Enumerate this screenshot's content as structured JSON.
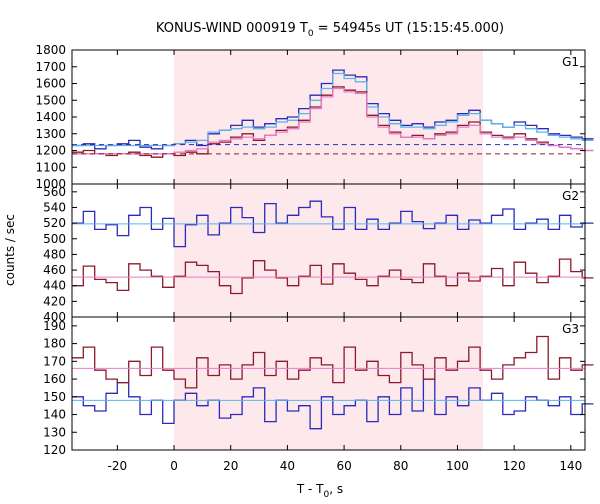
{
  "figure": {
    "title_main": "KONUS-WIND 000919 T",
    "title_sub": "0",
    "title_rest": " = 54945s UT (15:15:45.000)",
    "ylabel": "counts / sec",
    "xlabel_main": "T - T",
    "xlabel_sub": "0",
    "xlabel_rest": ", s"
  },
  "colors": {
    "red_series": "#8b1a2b",
    "blue_series": "#2b2bbb",
    "cyan_fit": "#5ab4e8",
    "pink_fit": "#e87cc8",
    "shade": "#fde8ec"
  },
  "chart_data": [
    {
      "type": "line",
      "panel": "G1",
      "xlim": [
        -36,
        145
      ],
      "ylim": [
        1000,
        1800
      ],
      "yticks": [
        1000,
        1100,
        1200,
        1300,
        1400,
        1500,
        1600,
        1700,
        1800
      ],
      "xticks": [
        -20,
        0,
        20,
        40,
        60,
        80,
        100,
        120,
        140
      ],
      "shaded_interval": [
        0,
        109
      ],
      "step": 4,
      "x_start": -36,
      "series": [
        {
          "color_key": "blue_series",
          "style": "step",
          "values": [
            1230,
            1240,
            1210,
            1230,
            1240,
            1260,
            1220,
            1210,
            1230,
            1240,
            1260,
            1230,
            1300,
            1320,
            1350,
            1380,
            1340,
            1360,
            1390,
            1400,
            1450,
            1530,
            1600,
            1680,
            1650,
            1640,
            1480,
            1420,
            1380,
            1350,
            1360,
            1340,
            1370,
            1380,
            1420,
            1440,
            1380,
            1360,
            1340,
            1370,
            1350,
            1330,
            1300,
            1290,
            1280,
            1270
          ]
        },
        {
          "color_key": "cyan_fit",
          "style": "step",
          "values": [
            1230,
            1230,
            1230,
            1230,
            1230,
            1230,
            1230,
            1230,
            1230,
            1240,
            1250,
            1260,
            1310,
            1320,
            1330,
            1340,
            1330,
            1340,
            1370,
            1380,
            1420,
            1500,
            1570,
            1660,
            1630,
            1610,
            1460,
            1400,
            1360,
            1340,
            1340,
            1330,
            1350,
            1370,
            1410,
            1420,
            1380,
            1360,
            1340,
            1350,
            1330,
            1310,
            1290,
            1280,
            1270,
            1260
          ]
        },
        {
          "color_key": "red_series",
          "style": "step",
          "values": [
            1190,
            1200,
            1180,
            1170,
            1180,
            1190,
            1170,
            1160,
            1180,
            1170,
            1190,
            1180,
            1240,
            1250,
            1280,
            1300,
            1260,
            1290,
            1320,
            1340,
            1380,
            1460,
            1530,
            1580,
            1560,
            1550,
            1410,
            1350,
            1310,
            1280,
            1290,
            1270,
            1300,
            1310,
            1350,
            1370,
            1310,
            1290,
            1280,
            1300,
            1270,
            1250,
            1230,
            1220,
            1210,
            1200
          ]
        },
        {
          "color_key": "pink_fit",
          "style": "step",
          "values": [
            1180,
            1180,
            1180,
            1180,
            1180,
            1180,
            1180,
            1180,
            1180,
            1190,
            1200,
            1210,
            1250,
            1260,
            1270,
            1280,
            1270,
            1290,
            1310,
            1330,
            1370,
            1450,
            1520,
            1570,
            1550,
            1540,
            1400,
            1340,
            1300,
            1280,
            1280,
            1270,
            1290,
            1300,
            1340,
            1350,
            1300,
            1280,
            1270,
            1280,
            1260,
            1240,
            1230,
            1220,
            1210,
            1200
          ]
        },
        {
          "color_key": "blue_series",
          "style": "dashed-level",
          "level": 1235
        },
        {
          "color_key": "red_series",
          "style": "dashed-level",
          "level": 1180
        }
      ]
    },
    {
      "type": "line",
      "panel": "G2",
      "xlim": [
        -36,
        145
      ],
      "ylim": [
        400,
        570
      ],
      "yticks": [
        400,
        420,
        440,
        460,
        480,
        500,
        520,
        540,
        560
      ],
      "xticks": [
        -20,
        0,
        20,
        40,
        60,
        80,
        100,
        120,
        140
      ],
      "shaded_interval": [
        0,
        109
      ],
      "step": 4,
      "x_start": -36,
      "series": [
        {
          "color_key": "blue_series",
          "style": "step",
          "values": [
            520,
            535,
            512,
            518,
            504,
            530,
            540,
            512,
            526,
            490,
            518,
            530,
            505,
            520,
            540,
            527,
            508,
            545,
            520,
            530,
            540,
            548,
            528,
            512,
            540,
            512,
            525,
            512,
            520,
            535,
            522,
            513,
            520,
            530,
            512,
            524,
            520,
            530,
            538,
            512,
            520,
            525,
            512,
            530,
            515,
            520
          ]
        },
        {
          "color_key": "red_series",
          "style": "step",
          "values": [
            440,
            465,
            448,
            444,
            434,
            468,
            460,
            452,
            438,
            452,
            470,
            466,
            458,
            440,
            430,
            450,
            472,
            460,
            450,
            440,
            452,
            466,
            442,
            468,
            456,
            448,
            440,
            452,
            460,
            448,
            444,
            468,
            452,
            440,
            456,
            446,
            452,
            462,
            440,
            470,
            456,
            444,
            452,
            474,
            458,
            450
          ]
        },
        {
          "color_key": "cyan_fit",
          "style": "level",
          "level": 519
        },
        {
          "color_key": "pink_fit",
          "style": "level",
          "level": 451
        }
      ]
    },
    {
      "type": "line",
      "panel": "G3",
      "xlim": [
        -36,
        145
      ],
      "ylim": [
        120,
        195
      ],
      "yticks": [
        120,
        130,
        140,
        150,
        160,
        170,
        180,
        190
      ],
      "xticks": [
        -20,
        0,
        20,
        40,
        60,
        80,
        100,
        120,
        140
      ],
      "shaded_interval": [
        0,
        109
      ],
      "step": 4,
      "x_start": -36,
      "series": [
        {
          "color_key": "blue_series",
          "style": "step",
          "values": [
            150,
            145,
            142,
            152,
            158,
            150,
            140,
            148,
            135,
            148,
            152,
            145,
            148,
            138,
            140,
            150,
            155,
            136,
            148,
            142,
            145,
            132,
            150,
            140,
            145,
            148,
            136,
            150,
            140,
            155,
            142,
            160,
            140,
            150,
            145,
            155,
            148,
            152,
            140,
            142,
            150,
            148,
            145,
            150,
            140,
            146
          ]
        },
        {
          "color_key": "red_series",
          "style": "step",
          "values": [
            172,
            178,
            165,
            160,
            158,
            170,
            162,
            178,
            165,
            160,
            155,
            172,
            162,
            168,
            160,
            168,
            175,
            162,
            170,
            160,
            165,
            172,
            168,
            158,
            178,
            165,
            170,
            162,
            158,
            175,
            168,
            160,
            172,
            165,
            170,
            178,
            165,
            160,
            168,
            172,
            175,
            184,
            160,
            172,
            165,
            168
          ]
        },
        {
          "color_key": "cyan_fit",
          "style": "level",
          "level": 148
        },
        {
          "color_key": "pink_fit",
          "style": "level",
          "level": 166
        }
      ]
    }
  ],
  "panel_labels": [
    "G1",
    "G2",
    "G3"
  ],
  "xtick_labels": [
    "-20",
    "0",
    "20",
    "40",
    "60",
    "80",
    "100",
    "120",
    "140"
  ]
}
